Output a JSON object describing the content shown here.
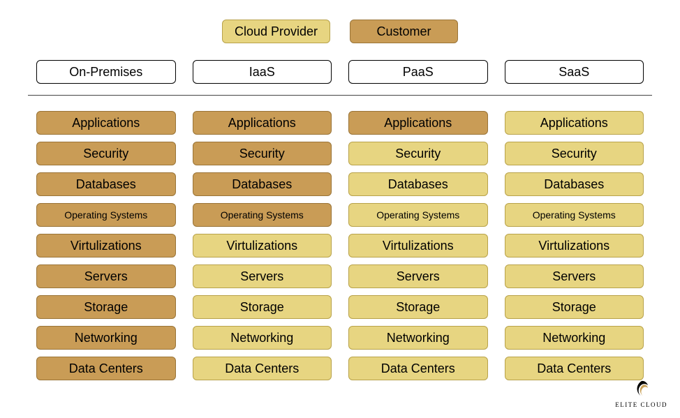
{
  "type": "infographic",
  "colors": {
    "provider_bg": "#e7d581",
    "provider_border": "#b8a24a",
    "customer_bg": "#c99c56",
    "customer_border": "#9a7437",
    "header_bg": "#ffffff",
    "header_border": "#000000",
    "divider": "#444444",
    "page_bg": "#ffffff",
    "text": "#000000"
  },
  "legend": {
    "provider": "Cloud Provider",
    "customer": "Customer"
  },
  "columns": [
    {
      "key": "onprem",
      "label": "On-Premises"
    },
    {
      "key": "iaas",
      "label": "IaaS"
    },
    {
      "key": "paas",
      "label": "PaaS"
    },
    {
      "key": "saas",
      "label": "SaaS"
    }
  ],
  "layers": [
    {
      "key": "applications",
      "label": "Applications",
      "small": false
    },
    {
      "key": "security",
      "label": "Security",
      "small": false
    },
    {
      "key": "databases",
      "label": "Databases",
      "small": false
    },
    {
      "key": "os",
      "label": "Operating Systems",
      "small": true
    },
    {
      "key": "virt",
      "label": "Virtulizations",
      "small": false
    },
    {
      "key": "servers",
      "label": "Servers",
      "small": false
    },
    {
      "key": "storage",
      "label": "Storage",
      "small": false
    },
    {
      "key": "networking",
      "label": "Networking",
      "small": false
    },
    {
      "key": "dc",
      "label": "Data Centers",
      "small": false
    }
  ],
  "responsibility": {
    "onprem": [
      "customer",
      "customer",
      "customer",
      "customer",
      "customer",
      "customer",
      "customer",
      "customer",
      "customer"
    ],
    "iaas": [
      "customer",
      "customer",
      "customer",
      "customer",
      "provider",
      "provider",
      "provider",
      "provider",
      "provider"
    ],
    "paas": [
      "customer",
      "provider",
      "provider",
      "provider",
      "provider",
      "provider",
      "provider",
      "provider",
      "provider"
    ],
    "saas": [
      "provider",
      "provider",
      "provider",
      "provider",
      "provider",
      "provider",
      "provider",
      "provider",
      "provider"
    ]
  },
  "logo": {
    "brand": "ELITE CLOUD"
  }
}
